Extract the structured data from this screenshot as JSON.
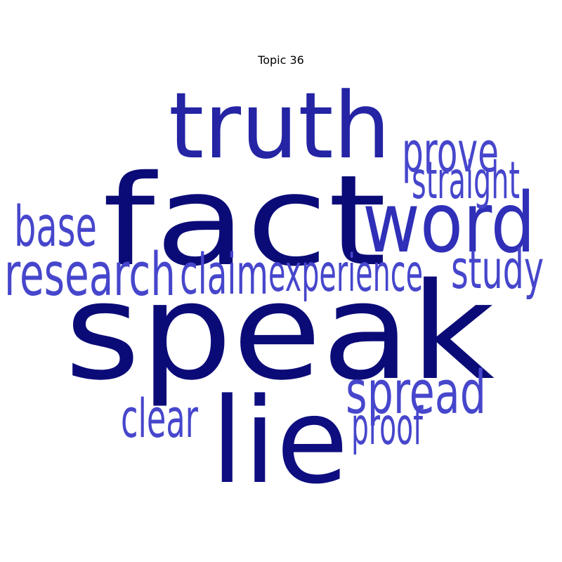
{
  "title": "Topic 36",
  "words": [
    {
      "text": "speak",
      "weight": 1.0,
      "color": "#0b0b78"
    },
    {
      "text": "fact",
      "weight": 0.92,
      "color": "#0b0b78"
    },
    {
      "text": "lie",
      "weight": 0.85,
      "color": "#0e0e80"
    },
    {
      "text": "truth",
      "weight": 0.6,
      "color": "#2424a4"
    },
    {
      "text": "word",
      "weight": 0.52,
      "color": "#2f2fb8"
    },
    {
      "text": "research",
      "weight": 0.3,
      "color": "#4646cc"
    },
    {
      "text": "spread",
      "weight": 0.3,
      "color": "#4646cc"
    },
    {
      "text": "claim",
      "weight": 0.26,
      "color": "#4646cc"
    },
    {
      "text": "prove",
      "weight": 0.26,
      "color": "#4646cc"
    },
    {
      "text": "base",
      "weight": 0.26,
      "color": "#4646cc"
    },
    {
      "text": "study",
      "weight": 0.24,
      "color": "#4646cc"
    },
    {
      "text": "clear",
      "weight": 0.24,
      "color": "#4646cc"
    },
    {
      "text": "experience",
      "weight": 0.22,
      "color": "#4646cc"
    },
    {
      "text": "straight",
      "weight": 0.22,
      "color": "#4646cc"
    },
    {
      "text": "proof",
      "weight": 0.22,
      "color": "#4646cc"
    }
  ]
}
